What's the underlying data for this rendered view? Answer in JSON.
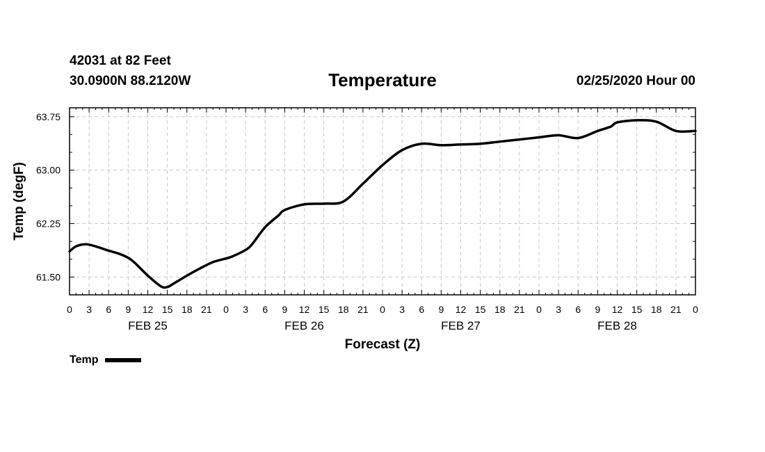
{
  "header": {
    "station": "42031 at 82 Feet",
    "coords": "30.0900N 88.2120W",
    "title": "Temperature",
    "datetime": "02/25/2020 Hour 00"
  },
  "chart_data": {
    "type": "line",
    "title": "Temperature",
    "xlabel": "Forecast (Z)",
    "ylabel": "Temp (degF)",
    "x_hours": [
      0,
      3,
      6,
      9,
      12,
      15,
      18,
      21,
      24,
      27,
      30,
      33,
      36,
      39,
      42,
      45,
      48,
      51,
      54,
      57,
      60,
      63,
      66,
      69,
      72,
      75,
      78,
      81,
      84,
      87,
      90,
      93,
      96
    ],
    "x_tick_labels": [
      "0",
      "3",
      "6",
      "9",
      "12",
      "15",
      "18",
      "21",
      "0",
      "3",
      "6",
      "9",
      "12",
      "15",
      "18",
      "21",
      "0",
      "3",
      "6",
      "9",
      "12",
      "15",
      "18",
      "21",
      "0",
      "3",
      "6",
      "9",
      "12",
      "15",
      "18",
      "21",
      "0"
    ],
    "day_labels": [
      {
        "label": "FEB 25",
        "hour": 12
      },
      {
        "label": "FEB 26",
        "hour": 36
      },
      {
        "label": "FEB 27",
        "hour": 60
      },
      {
        "label": "FEB 28",
        "hour": 84
      }
    ],
    "y_ticks": [
      61.5,
      62.25,
      63.0,
      63.75
    ],
    "y_tick_labels": [
      "61.50",
      "62.25",
      "63.00",
      "63.75"
    ],
    "xlim": [
      0,
      96
    ],
    "ylim": [
      61.25,
      63.875
    ],
    "grid": true,
    "series": [
      {
        "name": "Temp",
        "x": [
          0,
          1,
          2.5,
          4,
          6,
          7.5,
          9,
          10,
          12,
          14,
          15,
          16,
          18,
          20,
          22,
          24,
          25,
          27,
          28,
          30,
          32,
          33,
          36,
          39,
          42,
          45,
          48,
          51,
          54,
          57,
          60,
          63,
          66,
          69,
          72,
          75,
          78,
          81,
          83,
          84,
          87,
          90,
          93,
          96
        ],
        "values": [
          61.86,
          61.93,
          61.96,
          61.93,
          61.87,
          61.83,
          61.77,
          61.7,
          61.52,
          61.37,
          61.36,
          61.41,
          61.52,
          61.62,
          61.71,
          61.76,
          61.79,
          61.88,
          61.96,
          62.2,
          62.36,
          62.44,
          62.52,
          62.53,
          62.56,
          62.81,
          63.07,
          63.28,
          63.37,
          63.35,
          63.36,
          63.37,
          63.4,
          63.43,
          63.46,
          63.49,
          63.45,
          63.55,
          63.61,
          63.67,
          63.7,
          63.68,
          63.55,
          63.55
        ]
      }
    ]
  },
  "legend": {
    "entries": [
      {
        "label": "Temp",
        "color": "#000000"
      }
    ]
  }
}
